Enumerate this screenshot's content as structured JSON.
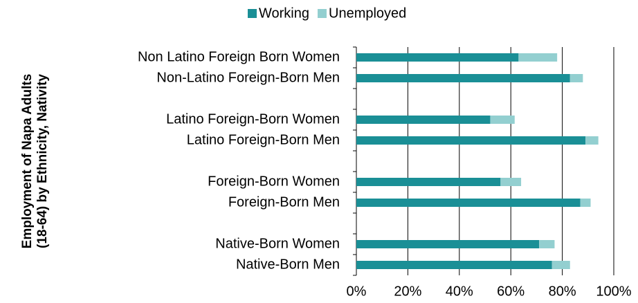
{
  "chart_data": {
    "type": "stacked_bar_horizontal",
    "y_label": [
      "Employment of Napa Adults",
      "(18-64) by Ethnicity, Nativity"
    ],
    "categories": [
      "Non Latino Foreign Born Women",
      "Non-Latino Foreign-Born Men",
      null,
      "Latino Foreign-Born Women",
      "Latino Foreign-Born Men",
      null,
      "Foreign-Born Women",
      "Foreign-Born Men",
      null,
      "Native-Born Women",
      "Native-Born Men"
    ],
    "series": [
      {
        "name": "Working",
        "color": "#1a8f96",
        "values": [
          63,
          83,
          null,
          52,
          89,
          null,
          56,
          87,
          null,
          71,
          76
        ]
      },
      {
        "name": "Unemployed",
        "color": "#93cfd0",
        "values": [
          15,
          5,
          null,
          9.5,
          5,
          null,
          8,
          4,
          null,
          6,
          7
        ]
      }
    ],
    "xlim": [
      0,
      100
    ],
    "xticks": [
      {
        "value": 0,
        "label": "0%"
      },
      {
        "value": 20,
        "label": "20%"
      },
      {
        "value": 40,
        "label": "40%"
      },
      {
        "value": 60,
        "label": "60%"
      },
      {
        "value": 80,
        "label": "80%"
      },
      {
        "value": 100,
        "label": "100%"
      }
    ],
    "grid": true,
    "legend": "top"
  }
}
